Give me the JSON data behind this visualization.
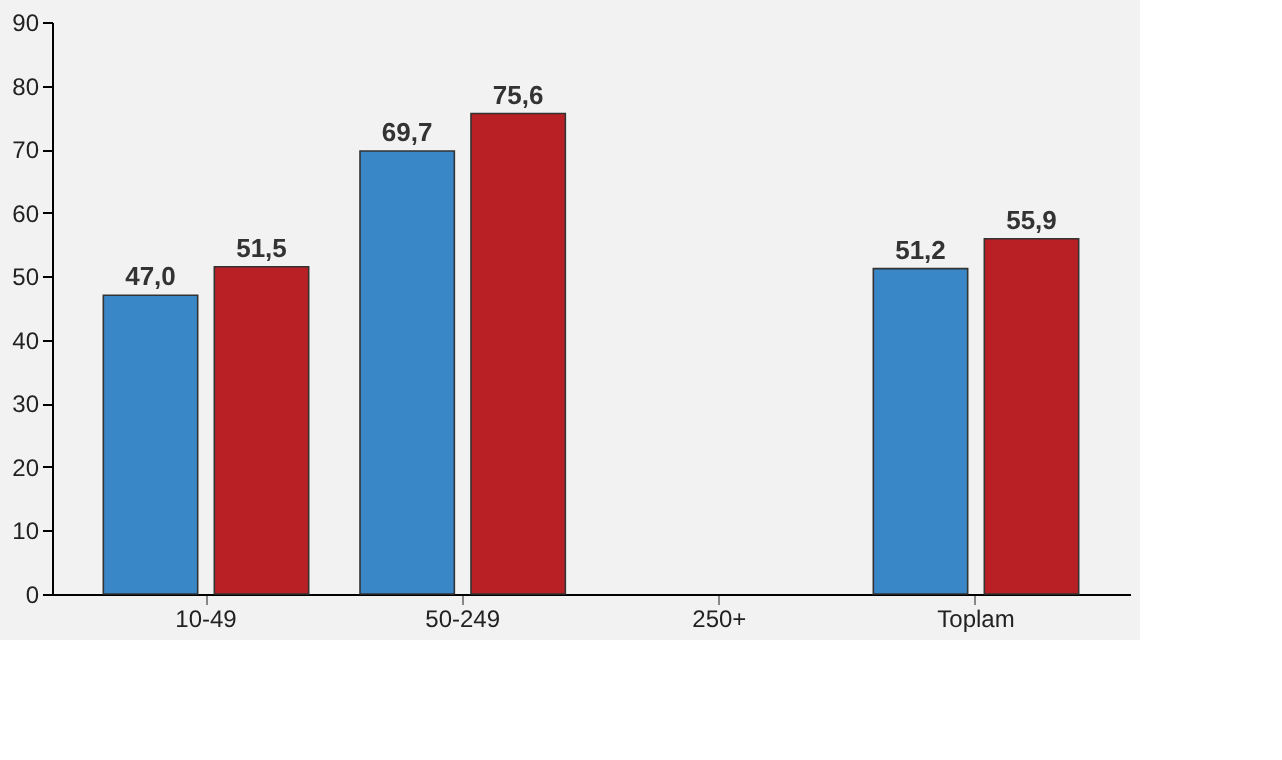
{
  "chart_data": {
    "type": "bar",
    "categories": [
      "10-49",
      "50-249",
      "250+",
      "Toplam"
    ],
    "series": [
      {
        "color": "#3a87c8",
        "values": [
          47.0,
          69.7,
          null,
          51.2
        ],
        "value_labels": [
          "47,0",
          "69,7",
          null,
          "51,2"
        ]
      },
      {
        "color": "#b82025",
        "values": [
          51.5,
          75.6,
          null,
          55.9
        ],
        "value_labels": [
          "51,5",
          "75,6",
          null,
          "55,9"
        ]
      }
    ],
    "ylim": [
      0,
      90
    ],
    "yticks": [
      0,
      10,
      20,
      30,
      40,
      50,
      60,
      70,
      80,
      90
    ],
    "grid": false
  }
}
